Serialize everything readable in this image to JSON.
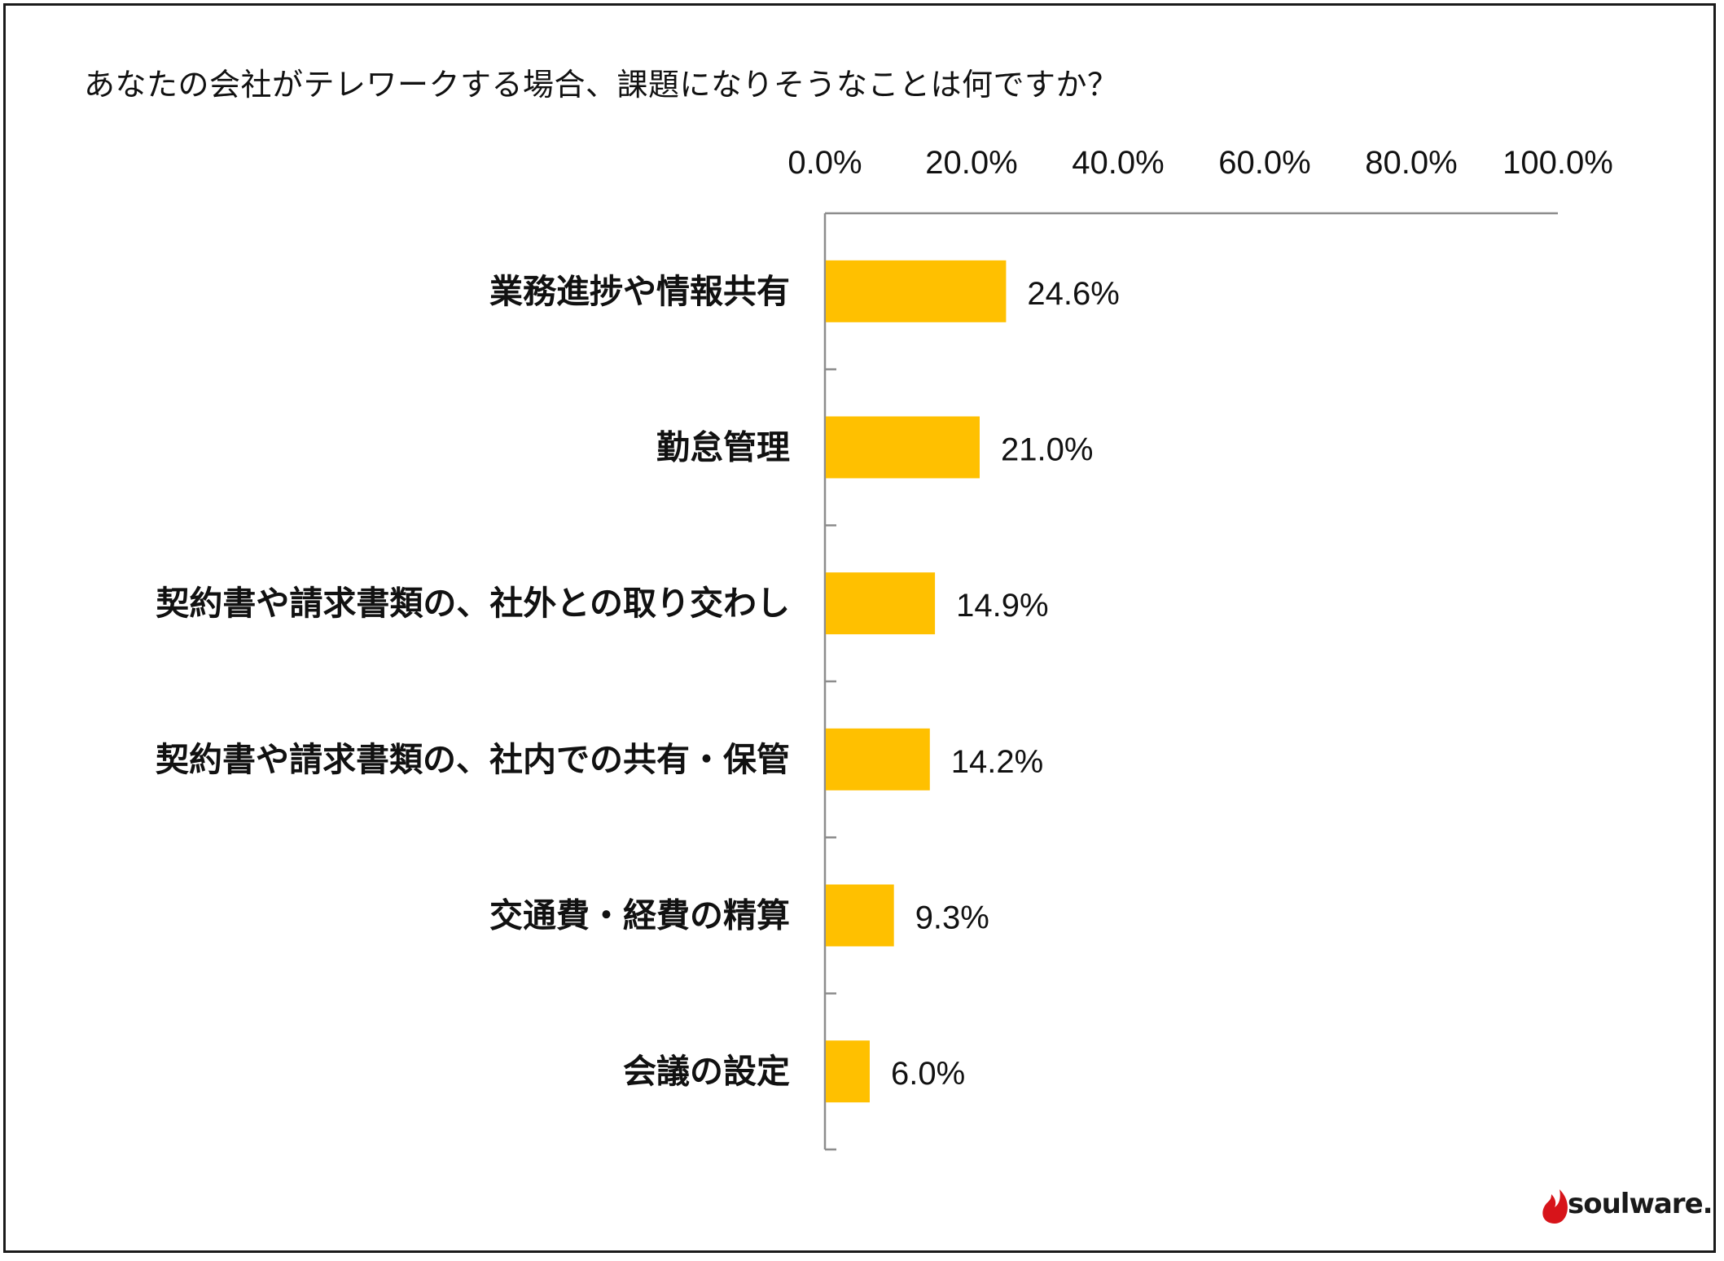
{
  "chart_data": {
    "type": "bar",
    "orientation": "horizontal",
    "title": "あなたの会社がテレワークする場合、課題になりそうなことは何ですか？",
    "xlim": [
      0,
      100
    ],
    "ticks": [
      0,
      20,
      40,
      60,
      80,
      100
    ],
    "tick_labels": [
      "0.0%",
      "20.0%",
      "40.0%",
      "60.0%",
      "80.0%",
      "100.0%"
    ],
    "axis_position": "top",
    "grid": false,
    "bar_color": "#FFC000",
    "categories": [
      "業務進捗や情報共有",
      "勤怠管理",
      "契約書や請求書類の、社外との取り交わし",
      "契約書や請求書類の、社内での共有・保管",
      "交通費・経費の精算",
      "会議の設定"
    ],
    "values": [
      24.6,
      21.0,
      14.9,
      14.2,
      9.3,
      6.0
    ],
    "value_labels": [
      "24.6%",
      "21.0%",
      "14.9%",
      "14.2%",
      "9.3%",
      "6.0%"
    ]
  },
  "logo": {
    "text": "soulware.",
    "color": "#D7141A"
  }
}
